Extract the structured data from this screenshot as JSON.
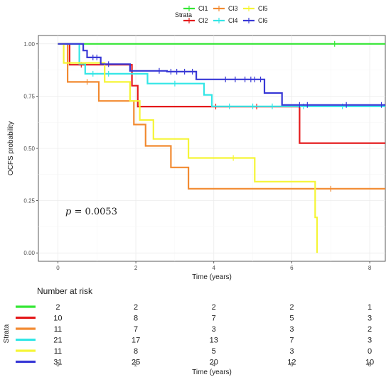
{
  "chart_data": [
    {
      "type": "line",
      "subtype": "kaplan-meier step",
      "xlabel": "Time (years)",
      "ylabel": "OCFS probability",
      "xlim": [
        -0.5,
        8.4
      ],
      "ylim": [
        -0.04,
        1.04
      ],
      "xticks": [
        0,
        2,
        4,
        6,
        8
      ],
      "yticks": [
        0.0,
        0.25,
        0.5,
        0.75,
        1.0
      ],
      "ytick_labels": [
        "0.00",
        "0.25",
        "0.50",
        "0.75",
        "1.00"
      ],
      "grid": true,
      "legend": {
        "title": "Strata",
        "position": "top"
      },
      "annotation": {
        "p_symbol": "p",
        "p_text": " = 0.0053"
      },
      "series": [
        {
          "name": "Cl1",
          "color": "#33e633",
          "steps": [
            [
              0,
              1.0
            ],
            [
              8.4,
              1.0
            ]
          ],
          "censors": [
            [
              7.1,
              1.0
            ]
          ]
        },
        {
          "name": "Cl2",
          "color": "#e41a1c",
          "steps": [
            [
              0,
              1.0
            ],
            [
              0.3,
              1.0
            ],
            [
              0.3,
              0.9
            ],
            [
              1.9,
              0.9
            ],
            [
              1.9,
              0.8
            ],
            [
              2.05,
              0.8
            ],
            [
              2.05,
              0.7
            ],
            [
              6.2,
              0.7
            ],
            [
              6.2,
              0.525
            ],
            [
              8.4,
              0.525
            ]
          ],
          "censors": [
            [
              0.6,
              0.9
            ],
            [
              4.05,
              0.7
            ],
            [
              5.1,
              0.7
            ]
          ]
        },
        {
          "name": "Cl3",
          "color": "#f28a30",
          "steps": [
            [
              0,
              1.0
            ],
            [
              0.25,
              1.0
            ],
            [
              0.25,
              0.818
            ],
            [
              1.05,
              0.818
            ],
            [
              1.05,
              0.727
            ],
            [
              1.95,
              0.727
            ],
            [
              1.95,
              0.614
            ],
            [
              2.25,
              0.614
            ],
            [
              2.25,
              0.512
            ],
            [
              2.9,
              0.512
            ],
            [
              2.9,
              0.409
            ],
            [
              3.35,
              0.409
            ],
            [
              3.35,
              0.307
            ],
            [
              8.4,
              0.307
            ]
          ],
          "censors": [
            [
              0.75,
              0.818
            ],
            [
              7.0,
              0.307
            ]
          ]
        },
        {
          "name": "Cl4",
          "color": "#33e6e6",
          "steps": [
            [
              0,
              1.0
            ],
            [
              0.55,
              1.0
            ],
            [
              0.55,
              0.905
            ],
            [
              0.7,
              0.905
            ],
            [
              0.7,
              0.857
            ],
            [
              2.3,
              0.857
            ],
            [
              2.3,
              0.81
            ],
            [
              3.75,
              0.81
            ],
            [
              3.75,
              0.756
            ],
            [
              3.95,
              0.756
            ],
            [
              3.95,
              0.701
            ],
            [
              8.4,
              0.701
            ]
          ],
          "censors": [
            [
              0.9,
              0.857
            ],
            [
              1.3,
              0.857
            ],
            [
              3.0,
              0.81
            ],
            [
              4.4,
              0.701
            ],
            [
              5.0,
              0.701
            ],
            [
              5.5,
              0.701
            ],
            [
              6.3,
              0.701
            ],
            [
              7.3,
              0.701
            ]
          ]
        },
        {
          "name": "Cl5",
          "color": "#f5f536",
          "steps": [
            [
              0,
              1.0
            ],
            [
              0.15,
              1.0
            ],
            [
              0.15,
              0.909
            ],
            [
              1.2,
              0.909
            ],
            [
              1.2,
              0.818
            ],
            [
              1.85,
              0.818
            ],
            [
              1.85,
              0.727
            ],
            [
              2.1,
              0.727
            ],
            [
              2.1,
              0.636
            ],
            [
              2.45,
              0.636
            ],
            [
              2.45,
              0.545
            ],
            [
              3.35,
              0.545
            ],
            [
              3.35,
              0.454
            ],
            [
              5.05,
              0.454
            ],
            [
              5.05,
              0.341
            ],
            [
              6.6,
              0.341
            ],
            [
              6.6,
              0.17
            ],
            [
              6.65,
              0.17
            ],
            [
              6.65,
              0.0
            ]
          ],
          "censors": [
            [
              4.5,
              0.454
            ]
          ]
        },
        {
          "name": "Cl6",
          "color": "#3838d6",
          "steps": [
            [
              0,
              1.0
            ],
            [
              0.65,
              1.0
            ],
            [
              0.65,
              0.968
            ],
            [
              0.75,
              0.968
            ],
            [
              0.75,
              0.935
            ],
            [
              1.1,
              0.935
            ],
            [
              1.1,
              0.903
            ],
            [
              1.85,
              0.903
            ],
            [
              1.85,
              0.871
            ],
            [
              2.8,
              0.871
            ],
            [
              2.8,
              0.867
            ],
            [
              3.55,
              0.867
            ],
            [
              3.55,
              0.83
            ],
            [
              5.3,
              0.83
            ],
            [
              5.3,
              0.765
            ],
            [
              5.75,
              0.765
            ],
            [
              5.75,
              0.708
            ],
            [
              8.4,
              0.708
            ]
          ],
          "censors": [
            [
              0.9,
              0.935
            ],
            [
              1.0,
              0.935
            ],
            [
              1.3,
              0.903
            ],
            [
              2.6,
              0.871
            ],
            [
              2.9,
              0.867
            ],
            [
              3.05,
              0.867
            ],
            [
              3.25,
              0.867
            ],
            [
              3.45,
              0.867
            ],
            [
              4.3,
              0.83
            ],
            [
              4.55,
              0.83
            ],
            [
              4.8,
              0.83
            ],
            [
              4.95,
              0.83
            ],
            [
              5.05,
              0.83
            ],
            [
              5.2,
              0.83
            ],
            [
              6.2,
              0.708
            ],
            [
              6.4,
              0.708
            ],
            [
              7.4,
              0.708
            ],
            [
              8.3,
              0.708
            ]
          ]
        }
      ]
    },
    {
      "type": "table",
      "title": "Number at risk",
      "xlabel": "Time (years)",
      "ylabel": "Strata",
      "xticks": [
        0,
        2,
        4,
        6,
        8
      ],
      "rows": [
        {
          "color": "#33e633",
          "values": [
            2,
            2,
            2,
            2,
            1
          ]
        },
        {
          "color": "#e41a1c",
          "values": [
            10,
            8,
            7,
            5,
            3
          ]
        },
        {
          "color": "#f28a30",
          "values": [
            11,
            7,
            3,
            3,
            2
          ]
        },
        {
          "color": "#33e6e6",
          "values": [
            21,
            17,
            13,
            7,
            3
          ]
        },
        {
          "color": "#f5f536",
          "values": [
            11,
            8,
            5,
            3,
            0
          ]
        },
        {
          "color": "#3838d6",
          "values": [
            31,
            25,
            20,
            12,
            10
          ]
        }
      ]
    }
  ]
}
